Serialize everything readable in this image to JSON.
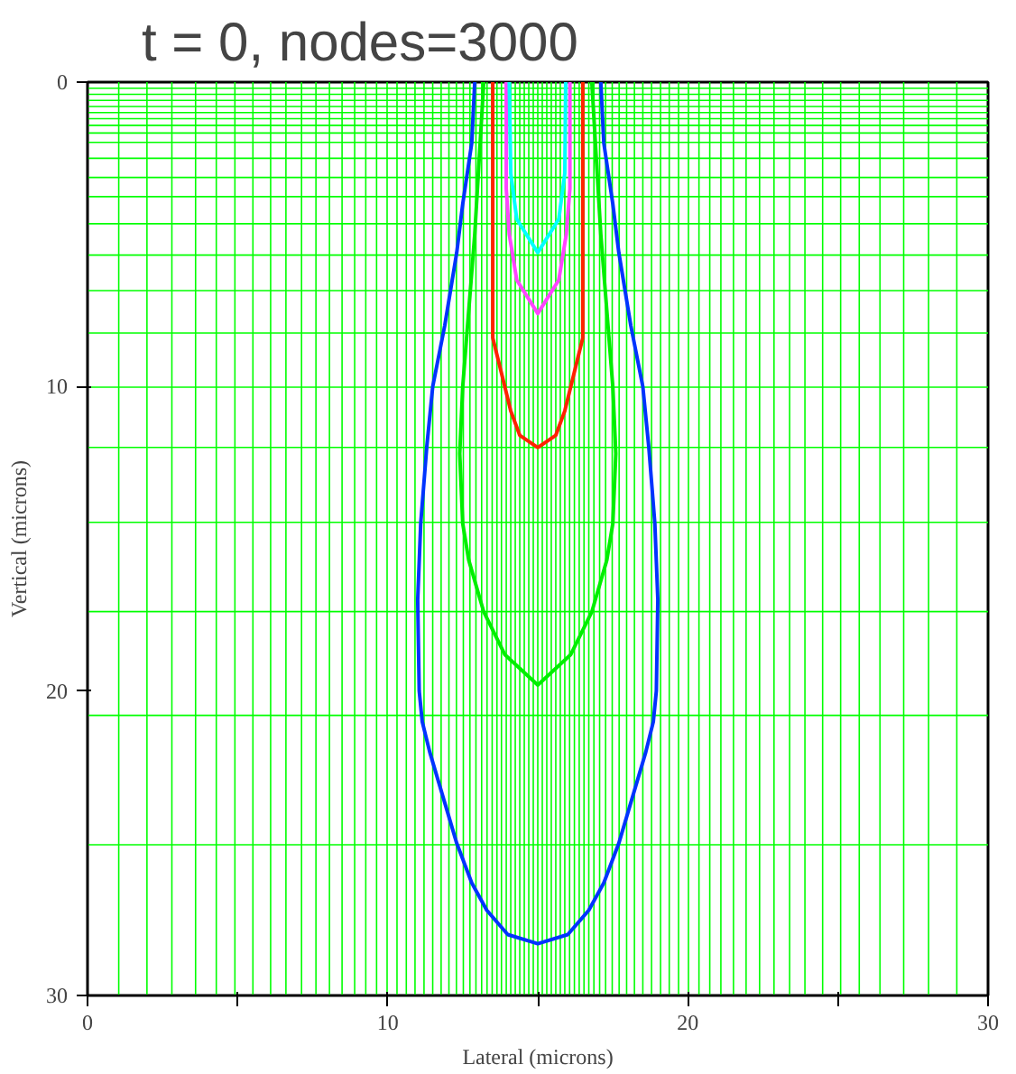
{
  "chart_data": {
    "type": "line",
    "title": "t = 0, nodes=3000",
    "xlabel": "Lateral (microns)",
    "ylabel": "Vertical (microns)",
    "xlim": [
      0,
      30
    ],
    "ylim": [
      30,
      0
    ],
    "xticks": [
      0,
      {
        "value": 5,
        "label": null
      },
      10,
      {
        "value": 15,
        "label": null
      },
      20,
      {
        "value": 25,
        "label": null
      },
      30
    ],
    "yticks": [
      0,
      10,
      20,
      30
    ],
    "grid": false,
    "marker": "none",
    "line_style": "solid",
    "series": [
      {
        "color": "#00ee00",
        "x": [
          13.2,
          12.9,
          12.5,
          12.4,
          12.5,
          12.7,
          13.2,
          13.9,
          15,
          16.1,
          16.8,
          17.3,
          17.5,
          17.6,
          17.5,
          17.1,
          16.8
        ],
        "values": [
          0,
          5,
          10,
          12.2,
          14.5,
          15.7,
          17.4,
          18.8,
          19.8,
          18.8,
          17.4,
          15.7,
          14.5,
          12.2,
          10,
          5,
          0
        ]
      },
      {
        "color": "#0033ff",
        "x": [
          12.9,
          12.8,
          12.5,
          12.3,
          11.9,
          11.5,
          11.3,
          11.1,
          11.0,
          11.05,
          11.15,
          11.4,
          11.7,
          12.0,
          12.3,
          12.8,
          13.3,
          14.0,
          15.0,
          16.0,
          16.7,
          17.2,
          17.7,
          18.0,
          18.3,
          18.6,
          18.85,
          18.95,
          19.0,
          18.9,
          18.7,
          18.5,
          18.1,
          17.7,
          17.5,
          17.2,
          17.1
        ],
        "values": [
          0,
          2,
          4,
          5.6,
          8,
          10,
          12,
          14.5,
          17,
          20,
          21,
          22,
          23,
          24,
          25,
          26.3,
          27.2,
          28,
          28.3,
          28,
          27.2,
          26.3,
          25,
          24,
          23,
          22,
          21,
          20,
          17,
          14.5,
          12,
          10,
          8,
          5.6,
          4,
          2,
          0
        ]
      },
      {
        "color": "#ff2200",
        "x": [
          13.5,
          13.5,
          13.7,
          13.9,
          14.1,
          14.4,
          15,
          15.6,
          15.9,
          16.1,
          16.3,
          16.5,
          16.5
        ],
        "values": [
          0,
          8.4,
          9.2,
          10,
          10.8,
          11.6,
          12,
          11.6,
          10.8,
          10,
          9.2,
          8.4,
          0
        ]
      },
      {
        "color": "#ff44ff",
        "x": [
          13.95,
          13.95,
          14.05,
          14.3,
          15,
          15.7,
          15.95,
          16.07,
          16.07
        ],
        "values": [
          0,
          3.5,
          5,
          6.5,
          7.6,
          6.5,
          5,
          3.5,
          0
        ]
      },
      {
        "color": "#00ffff",
        "x": [
          14.05,
          14.1,
          14.3,
          15,
          15.7,
          15.9,
          15.93
        ],
        "values": [
          0,
          3,
          4.5,
          5.6,
          4.5,
          3,
          0
        ]
      }
    ],
    "ref_lines": [
      {
        "axis": "x",
        "value": 1.04,
        "color": "#00ff00"
      },
      {
        "axis": "x",
        "value": 1.98,
        "color": "#00ff00"
      },
      {
        "axis": "x",
        "value": 2.81,
        "color": "#00ff00"
      },
      {
        "axis": "x",
        "value": 3.6,
        "color": "#00ff00"
      },
      {
        "axis": "x",
        "value": 4.29,
        "color": "#00ff00"
      },
      {
        "axis": "x",
        "value": 4.91,
        "color": "#00ff00"
      },
      {
        "axis": "x",
        "value": 5.51,
        "color": "#00ff00"
      },
      {
        "axis": "x",
        "value": 6.1,
        "color": "#00ff00"
      },
      {
        "axis": "x",
        "value": 6.61,
        "color": "#00ff00"
      },
      {
        "axis": "x",
        "value": 7.13,
        "color": "#00ff00"
      },
      {
        "axis": "x",
        "value": 7.61,
        "color": "#00ff00"
      },
      {
        "axis": "x",
        "value": 8.06,
        "color": "#00ff00"
      },
      {
        "axis": "x",
        "value": 8.48,
        "color": "#00ff00"
      },
      {
        "axis": "x",
        "value": 8.9,
        "color": "#00ff00"
      },
      {
        "axis": "x",
        "value": 9.27,
        "color": "#00ff00"
      },
      {
        "axis": "x",
        "value": 9.63,
        "color": "#00ff00"
      },
      {
        "axis": "x",
        "value": 9.98,
        "color": "#00ff00"
      },
      {
        "axis": "x",
        "value": 10.31,
        "color": "#00ff00"
      },
      {
        "axis": "x",
        "value": 10.62,
        "color": "#00ff00"
      },
      {
        "axis": "x",
        "value": 10.91,
        "color": "#00ff00"
      },
      {
        "axis": "x",
        "value": 11.21,
        "color": "#00ff00"
      },
      {
        "axis": "x",
        "value": 11.5,
        "color": "#00ff00"
      },
      {
        "axis": "x",
        "value": 11.78,
        "color": "#00ff00"
      },
      {
        "axis": "x",
        "value": 12.04,
        "color": "#00ff00"
      },
      {
        "axis": "x",
        "value": 12.29,
        "color": "#00ff00"
      },
      {
        "axis": "x",
        "value": 12.52,
        "color": "#00ff00"
      },
      {
        "axis": "x",
        "value": 12.74,
        "color": "#00ff00"
      },
      {
        "axis": "x",
        "value": 12.94,
        "color": "#00ff00"
      },
      {
        "axis": "x",
        "value": 13.13,
        "color": "#00ff00"
      },
      {
        "axis": "x",
        "value": 13.31,
        "color": "#00ff00"
      },
      {
        "axis": "x",
        "value": 13.48,
        "color": "#00ff00"
      },
      {
        "axis": "x",
        "value": 13.64,
        "color": "#00ff00"
      },
      {
        "axis": "x",
        "value": 13.79,
        "color": "#00ff00"
      },
      {
        "axis": "x",
        "value": 13.95,
        "color": "#00ff00"
      },
      {
        "axis": "x",
        "value": 14.1,
        "color": "#00ff00"
      },
      {
        "axis": "x",
        "value": 14.25,
        "color": "#00ff00"
      },
      {
        "axis": "x",
        "value": 14.4,
        "color": "#00ff00"
      },
      {
        "axis": "x",
        "value": 14.55,
        "color": "#00ff00"
      },
      {
        "axis": "x",
        "value": 14.7,
        "color": "#00ff00"
      },
      {
        "axis": "x",
        "value": 14.85,
        "color": "#00ff00"
      },
      {
        "axis": "x",
        "value": 15.0,
        "color": "#00ff00"
      },
      {
        "axis": "x",
        "value": 15.15,
        "color": "#00ff00"
      },
      {
        "axis": "x",
        "value": 15.3,
        "color": "#00ff00"
      },
      {
        "axis": "x",
        "value": 15.45,
        "color": "#00ff00"
      },
      {
        "axis": "x",
        "value": 15.6,
        "color": "#00ff00"
      },
      {
        "axis": "x",
        "value": 15.75,
        "color": "#00ff00"
      },
      {
        "axis": "x",
        "value": 15.9,
        "color": "#00ff00"
      },
      {
        "axis": "x",
        "value": 16.06,
        "color": "#00ff00"
      },
      {
        "axis": "x",
        "value": 16.22,
        "color": "#00ff00"
      },
      {
        "axis": "x",
        "value": 16.38,
        "color": "#00ff00"
      },
      {
        "axis": "x",
        "value": 16.54,
        "color": "#00ff00"
      },
      {
        "axis": "x",
        "value": 16.7,
        "color": "#00ff00"
      },
      {
        "axis": "x",
        "value": 16.87,
        "color": "#00ff00"
      },
      {
        "axis": "x",
        "value": 17.06,
        "color": "#00ff00"
      },
      {
        "axis": "x",
        "value": 17.26,
        "color": "#00ff00"
      },
      {
        "axis": "x",
        "value": 17.48,
        "color": "#00ff00"
      },
      {
        "axis": "x",
        "value": 17.71,
        "color": "#00ff00"
      },
      {
        "axis": "x",
        "value": 17.96,
        "color": "#00ff00"
      },
      {
        "axis": "x",
        "value": 18.22,
        "color": "#00ff00"
      },
      {
        "axis": "x",
        "value": 18.5,
        "color": "#00ff00"
      },
      {
        "axis": "x",
        "value": 18.79,
        "color": "#00ff00"
      },
      {
        "axis": "x",
        "value": 19.09,
        "color": "#00ff00"
      },
      {
        "axis": "x",
        "value": 19.38,
        "color": "#00ff00"
      },
      {
        "axis": "x",
        "value": 19.69,
        "color": "#00ff00"
      },
      {
        "axis": "x",
        "value": 20.02,
        "color": "#00ff00"
      },
      {
        "axis": "x",
        "value": 20.37,
        "color": "#00ff00"
      },
      {
        "axis": "x",
        "value": 20.73,
        "color": "#00ff00"
      },
      {
        "axis": "x",
        "value": 21.1,
        "color": "#00ff00"
      },
      {
        "axis": "x",
        "value": 21.52,
        "color": "#00ff00"
      },
      {
        "axis": "x",
        "value": 21.94,
        "color": "#00ff00"
      },
      {
        "axis": "x",
        "value": 22.39,
        "color": "#00ff00"
      },
      {
        "axis": "x",
        "value": 22.87,
        "color": "#00ff00"
      },
      {
        "axis": "x",
        "value": 23.39,
        "color": "#00ff00"
      },
      {
        "axis": "x",
        "value": 23.9,
        "color": "#00ff00"
      },
      {
        "axis": "x",
        "value": 24.49,
        "color": "#00ff00"
      },
      {
        "axis": "x",
        "value": 25.09,
        "color": "#00ff00"
      },
      {
        "axis": "x",
        "value": 25.71,
        "color": "#00ff00"
      },
      {
        "axis": "x",
        "value": 26.4,
        "color": "#00ff00"
      },
      {
        "axis": "x",
        "value": 27.19,
        "color": "#00ff00"
      },
      {
        "axis": "x",
        "value": 28.02,
        "color": "#00ff00"
      },
      {
        "axis": "x",
        "value": 28.96,
        "color": "#00ff00"
      },
      {
        "axis": "y",
        "value": 0.2,
        "color": "#00ff00"
      },
      {
        "axis": "y",
        "value": 0.4,
        "color": "#00ff00"
      },
      {
        "axis": "y",
        "value": 0.6,
        "color": "#00ff00"
      },
      {
        "axis": "y",
        "value": 0.8,
        "color": "#00ff00"
      },
      {
        "axis": "y",
        "value": 1.0,
        "color": "#00ff00"
      },
      {
        "axis": "y",
        "value": 1.2,
        "color": "#00ff00"
      },
      {
        "axis": "y",
        "value": 1.42,
        "color": "#00ff00"
      },
      {
        "axis": "y",
        "value": 1.67,
        "color": "#00ff00"
      },
      {
        "axis": "y",
        "value": 1.98,
        "color": "#00ff00"
      },
      {
        "axis": "y",
        "value": 2.5,
        "color": "#00ff00"
      },
      {
        "axis": "y",
        "value": 3.13,
        "color": "#00ff00"
      },
      {
        "axis": "y",
        "value": 3.76,
        "color": "#00ff00"
      },
      {
        "axis": "y",
        "value": 4.65,
        "color": "#00ff00"
      },
      {
        "axis": "y",
        "value": 5.68,
        "color": "#00ff00"
      },
      {
        "axis": "y",
        "value": 6.85,
        "color": "#00ff00"
      },
      {
        "axis": "y",
        "value": 8.24,
        "color": "#00ff00"
      },
      {
        "axis": "y",
        "value": 10.02,
        "color": "#00ff00"
      },
      {
        "axis": "y",
        "value": 12.0,
        "color": "#00ff00"
      },
      {
        "axis": "y",
        "value": 14.46,
        "color": "#00ff00"
      },
      {
        "axis": "y",
        "value": 17.39,
        "color": "#00ff00"
      },
      {
        "axis": "y",
        "value": 20.8,
        "color": "#00ff00"
      },
      {
        "axis": "y",
        "value": 25.05,
        "color": "#00ff00"
      }
    ]
  }
}
